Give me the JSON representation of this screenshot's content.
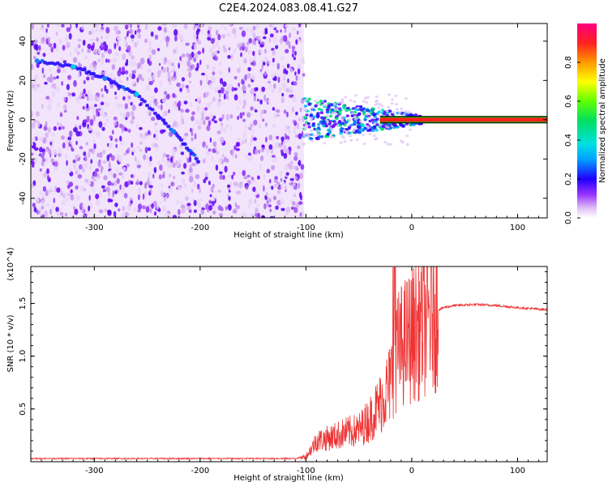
{
  "title": "C2E4.2024.083.08.41.G27",
  "colors": {
    "snr_line": "#ee3333",
    "heat_low": "#d9b8f0",
    "heat_mid": "#6a00ff",
    "heat_high": "#00e0e0",
    "carrier": "#ff2020"
  },
  "chart_data": [
    {
      "type": "heatmap",
      "title": "C2E4.2024.083.08.41.G27",
      "xlabel": "Height of straight line (km)",
      "ylabel": "Frequency (Hz)",
      "xlim": [
        -360,
        128
      ],
      "ylim": [
        -50,
        49
      ],
      "xticks": [
        -300,
        -200,
        -100,
        0,
        100
      ],
      "yticks": [
        -40,
        -20,
        0,
        20,
        40
      ],
      "colorbar": {
        "label": "Normalized spectral amplitude",
        "range": [
          0.0,
          1.0
        ],
        "ticks": [
          0.0,
          0.2,
          0.4,
          0.6,
          0.8
        ]
      },
      "features": {
        "noise_region_x": [
          -360,
          -102
        ],
        "descending_trace": [
          {
            "x": -354,
            "y": 30
          },
          {
            "x": -320,
            "y": 27
          },
          {
            "x": -290,
            "y": 21
          },
          {
            "x": -260,
            "y": 13
          },
          {
            "x": -225,
            "y": -6
          },
          {
            "x": -200,
            "y": -22
          }
        ],
        "convergence_region_x": [
          -102,
          10
        ],
        "carrier_line_x": [
          -30,
          128
        ],
        "carrier_frequency": 0
      }
    },
    {
      "type": "line",
      "xlabel": "Height of straight line (km)",
      "ylabel": "SNR (10 * v/v)",
      "yscale_label": "(x10^4)",
      "xlim": [
        -360,
        128
      ],
      "ylim": [
        0,
        1.85
      ],
      "xticks": [
        -300,
        -200,
        -100,
        0,
        100
      ],
      "yticks": [
        0.5,
        1.0,
        1.5
      ],
      "ytick_labels": [
        "0.5",
        "1.0",
        "1.5"
      ],
      "series": [
        {
          "name": "SNR",
          "x": [
            -360,
            -300,
            -200,
            -110,
            -100,
            -95,
            -90,
            -80,
            -70,
            -60,
            -50,
            -40,
            -30,
            -20,
            -16,
            -10,
            0,
            10,
            20,
            30,
            40,
            60,
            80,
            100,
            128
          ],
          "y": [
            0.03,
            0.03,
            0.03,
            0.03,
            0.05,
            0.12,
            0.2,
            0.22,
            0.25,
            0.28,
            0.3,
            0.4,
            0.55,
            0.75,
            1.0,
            1.1,
            1.2,
            1.3,
            1.42,
            1.46,
            1.48,
            1.49,
            1.48,
            1.46,
            1.44
          ]
        }
      ]
    }
  ]
}
